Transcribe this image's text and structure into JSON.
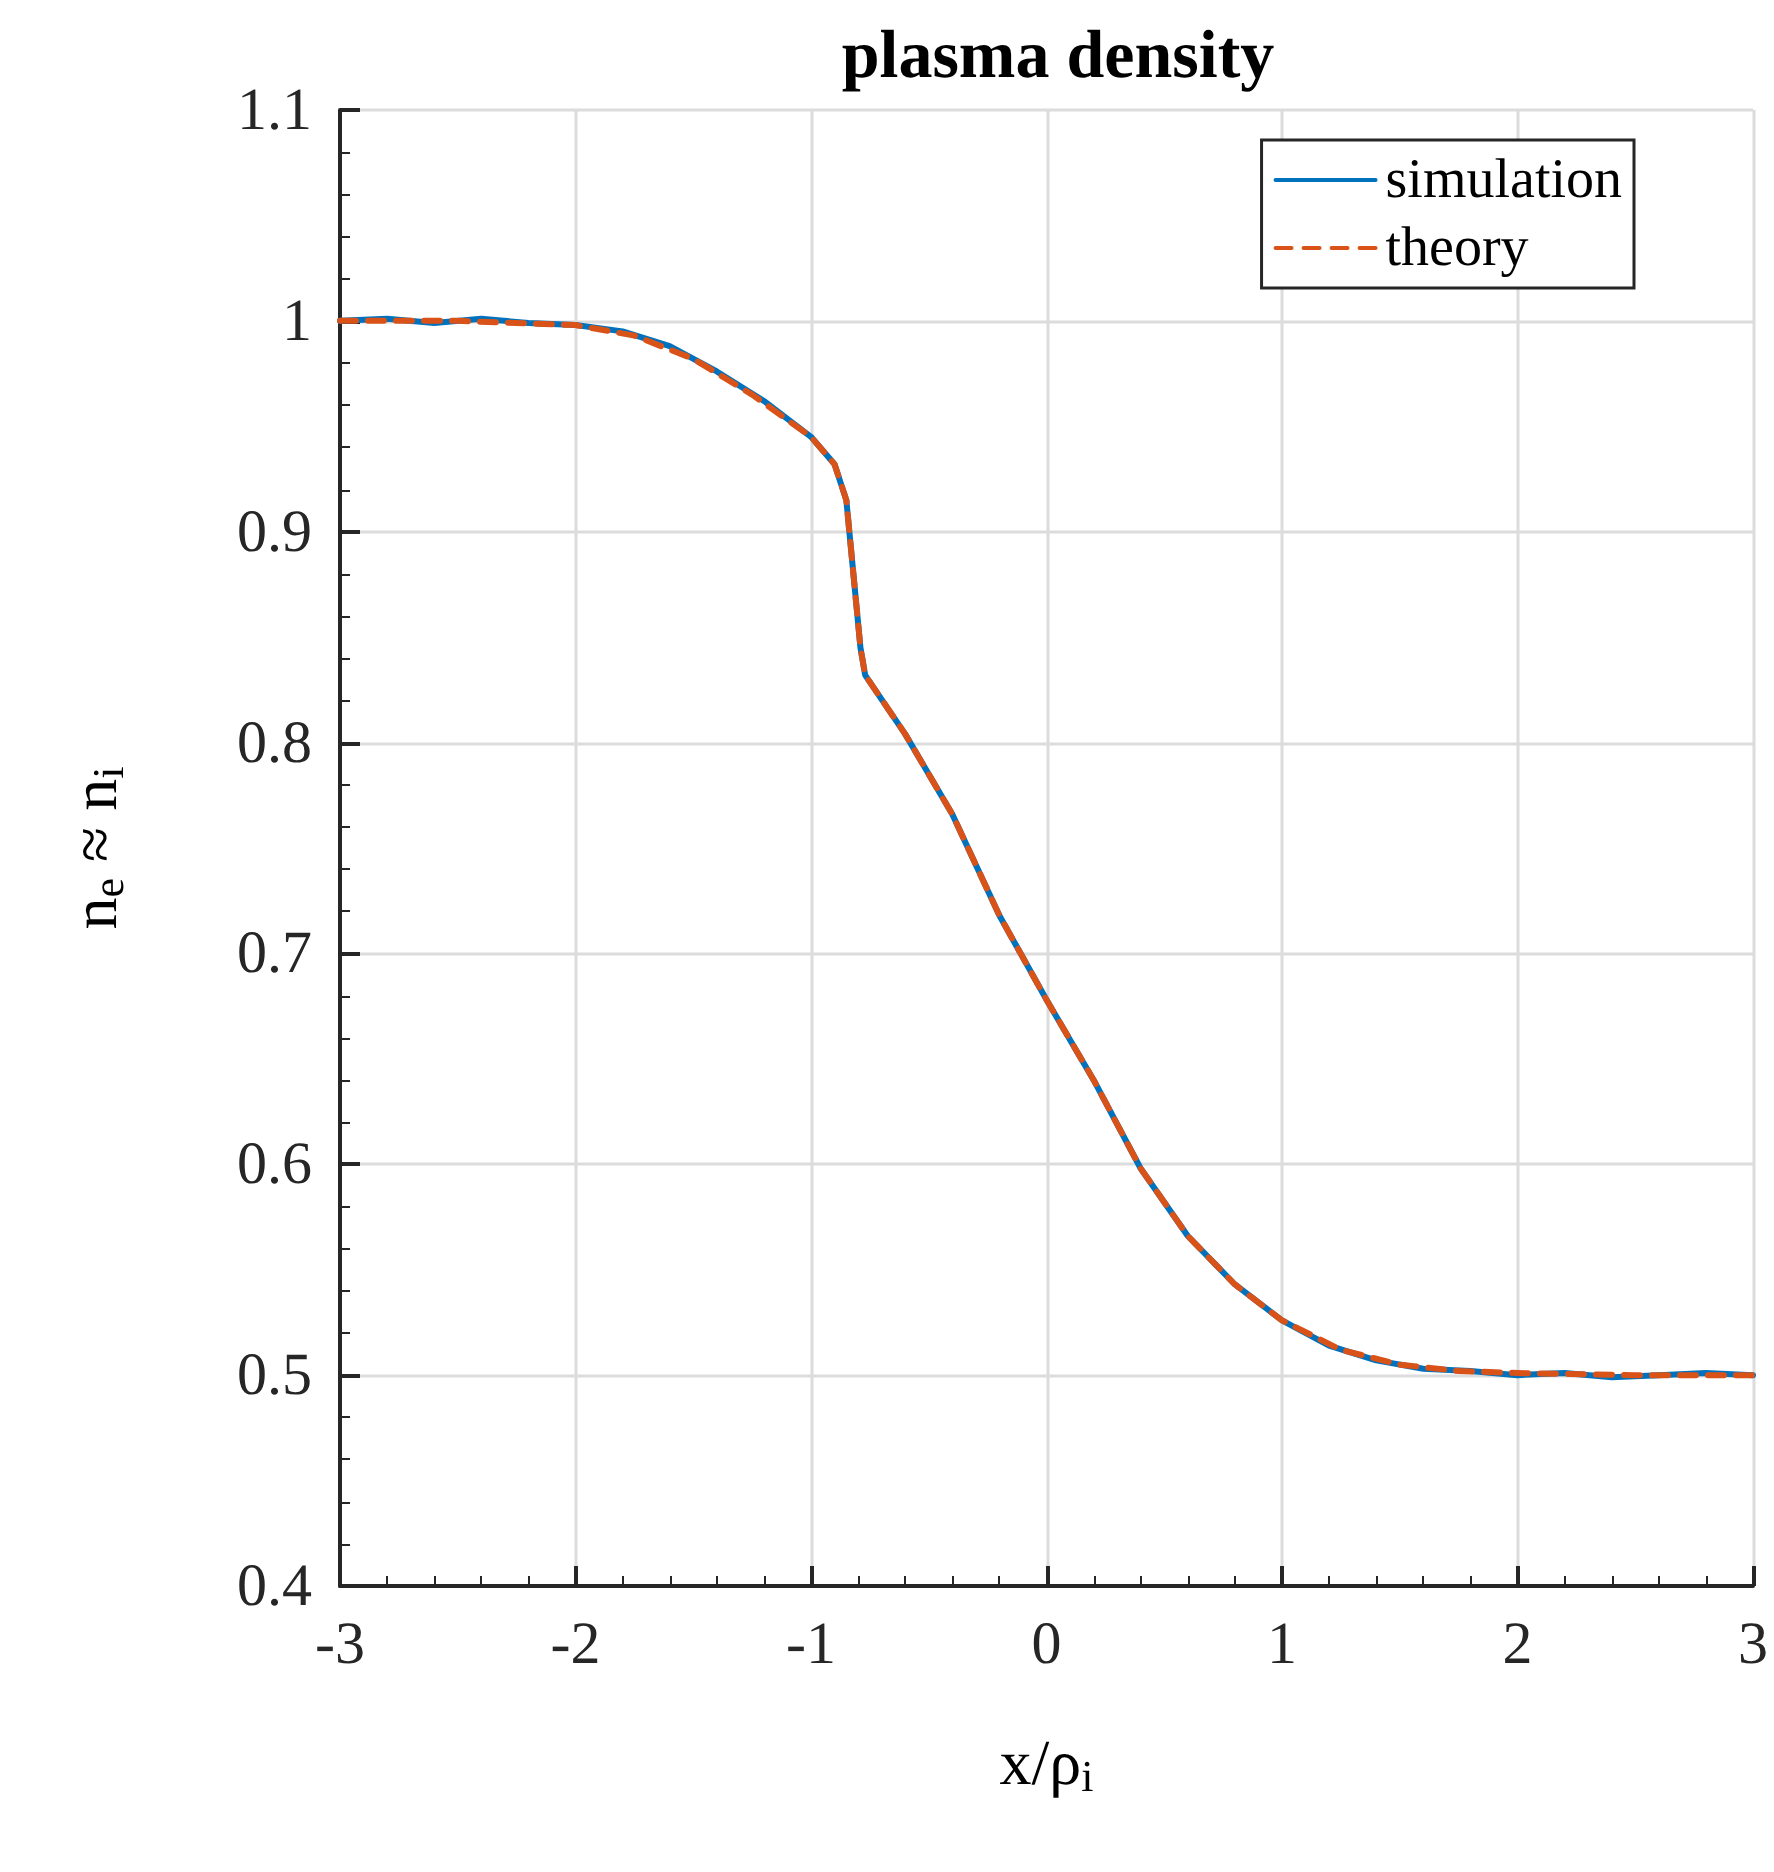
{
  "chart_data": {
    "type": "line",
    "title": "plasma density",
    "xlabel": "x/ρ$_{i}$",
    "ylabel": "n$_{e}$ ≈ n$_{i}$",
    "xlim": [
      -3,
      3
    ],
    "xticks": [
      -3,
      -2,
      -1,
      0,
      1,
      2,
      3
    ],
    "ylim": [
      0.4,
      1.1
    ],
    "yticks": [
      0.4,
      0.5,
      0.6,
      0.7,
      0.8,
      0.9,
      1,
      1.1
    ],
    "grid": true,
    "legend": "top right",
    "marker": "none",
    "series": [
      {
        "name": "simulation",
        "color": "#0072bd",
        "line_style": "solid",
        "x": [
          -3,
          -2.8,
          -2.6,
          -2.4,
          -2.2,
          -2,
          -1.8,
          -1.6,
          -1.4,
          -1.2,
          -1,
          -0.9,
          -0.85,
          -0.82,
          -0.79,
          -0.77,
          -0.6,
          -0.4,
          -0.2,
          0,
          0.2,
          0.4,
          0.6,
          0.8,
          1,
          1.2,
          1.4,
          1.6,
          1.8,
          2,
          2.2,
          2.4,
          2.6,
          2.8,
          3
        ],
        "values": [
          1,
          1.001,
          0.999,
          1.001,
          0.999,
          0.998,
          0.995,
          0.988,
          0.976,
          0.962,
          0.945,
          0.932,
          0.915,
          0.88,
          0.845,
          0.832,
          0.804,
          0.766,
          0.718,
          0.678,
          0.64,
          0.598,
          0.566,
          0.543,
          0.526,
          0.514,
          0.507,
          0.503,
          0.502,
          0.5,
          0.501,
          0.499,
          0.5,
          0.501,
          0.5
        ]
      },
      {
        "name": "theory",
        "color": "#d95319",
        "line_style": "dashed",
        "x": [
          -3,
          -2.5,
          -2,
          -1.75,
          -1.5,
          -1.25,
          -1,
          -0.9,
          -0.85,
          -0.82,
          -0.79,
          -0.77,
          -0.6,
          -0.4,
          -0.2,
          0,
          0.2,
          0.4,
          0.6,
          0.8,
          1,
          1.25,
          1.5,
          1.75,
          2,
          2.5,
          3
        ],
        "values": [
          1,
          1,
          0.998,
          0.993,
          0.982,
          0.965,
          0.945,
          0.932,
          0.915,
          0.88,
          0.845,
          0.832,
          0.804,
          0.766,
          0.718,
          0.678,
          0.64,
          0.598,
          0.566,
          0.543,
          0.526,
          0.512,
          0.505,
          0.502,
          0.501,
          0.5,
          0.5
        ]
      }
    ]
  }
}
